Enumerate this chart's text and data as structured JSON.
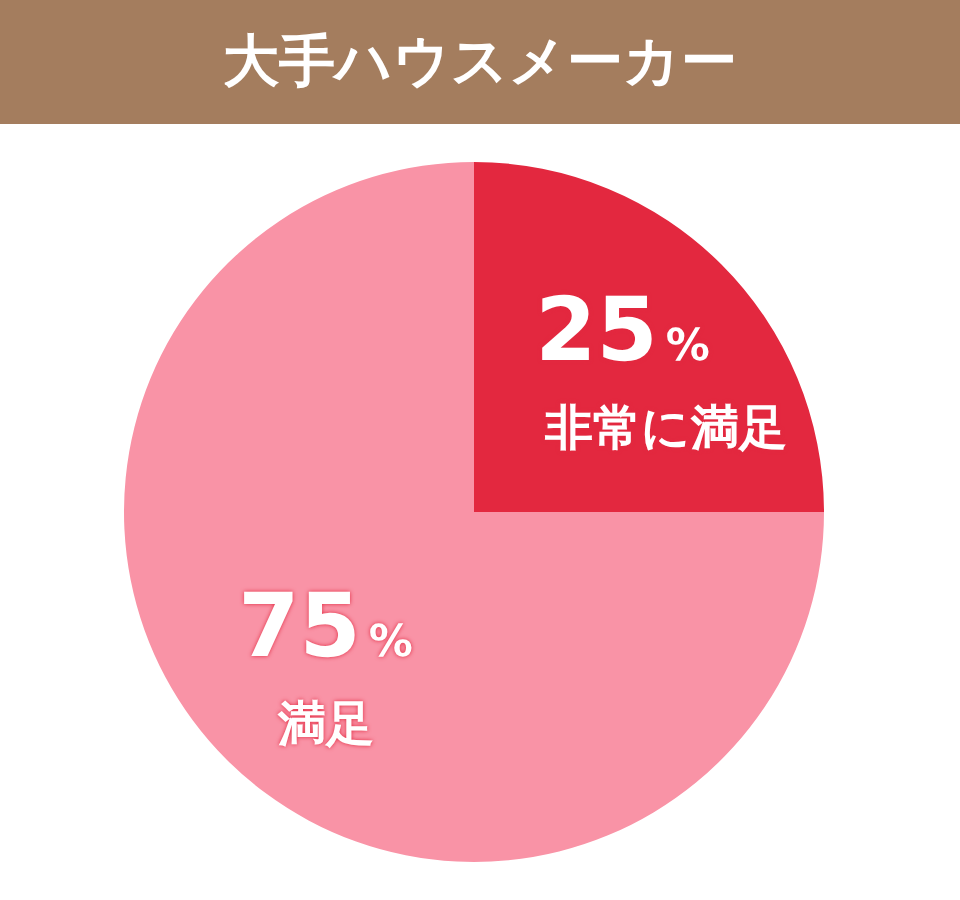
{
  "chart_data": {
    "type": "pie",
    "title": "大手ハウスメーカー",
    "categories": [
      "非常に満足",
      "満足"
    ],
    "values": [
      25,
      75
    ],
    "colors": [
      "#e3283f",
      "#f993a6"
    ],
    "value_labels": [
      "25%",
      "75%"
    ],
    "legend": false
  }
}
